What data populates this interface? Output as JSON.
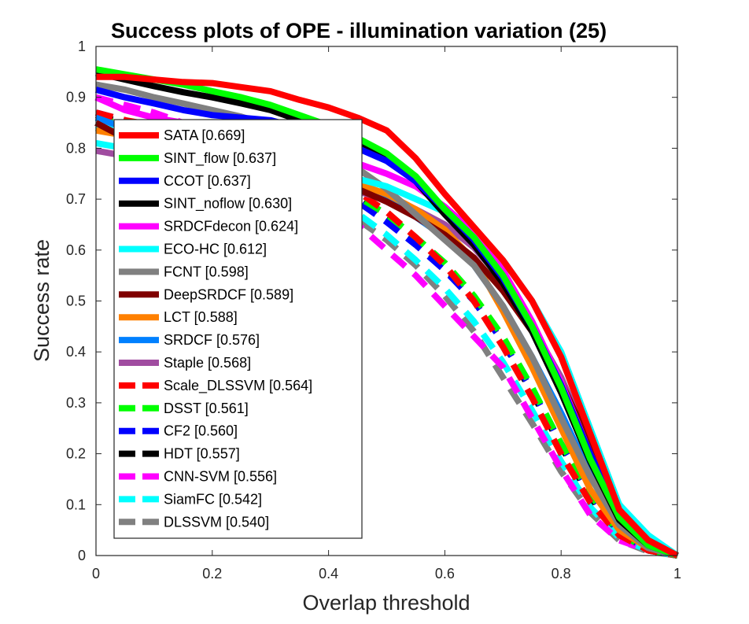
{
  "chart_data": {
    "type": "line",
    "title": "Success plots of OPE - illumination variation (25)",
    "xlabel": "Overlap threshold",
    "ylabel": "Success rate",
    "xlim": [
      0,
      1
    ],
    "ylim": [
      0,
      1
    ],
    "x_ticks": [
      "0",
      "0.2",
      "0.4",
      "0.6",
      "0.8",
      "1"
    ],
    "y_ticks": [
      "0",
      "0.1",
      "0.2",
      "0.3",
      "0.4",
      "0.5",
      "0.6",
      "0.7",
      "0.8",
      "0.9",
      "1"
    ],
    "grid": false,
    "legend_position": "top-left",
    "x": [
      0,
      0.05,
      0.1,
      0.15,
      0.2,
      0.25,
      0.3,
      0.35,
      0.4,
      0.45,
      0.5,
      0.55,
      0.6,
      0.65,
      0.7,
      0.75,
      0.8,
      0.85,
      0.9,
      0.95,
      1.0
    ],
    "series": [
      {
        "name": "SATA [0.669]",
        "color": "#ff0000",
        "dashed": false,
        "values": [
          0.94,
          0.94,
          0.935,
          0.93,
          0.928,
          0.92,
          0.912,
          0.895,
          0.88,
          0.86,
          0.835,
          0.78,
          0.71,
          0.645,
          0.58,
          0.5,
          0.39,
          0.24,
          0.09,
          0.03,
          0.0
        ]
      },
      {
        "name": "SINT_flow [0.637]",
        "color": "#00ff00",
        "dashed": false,
        "values": [
          0.955,
          0.945,
          0.935,
          0.925,
          0.912,
          0.9,
          0.885,
          0.865,
          0.845,
          0.82,
          0.79,
          0.745,
          0.68,
          0.625,
          0.55,
          0.45,
          0.33,
          0.19,
          0.075,
          0.02,
          0.0
        ]
      },
      {
        "name": "CCOT [0.637]",
        "color": "#0000ff",
        "dashed": false,
        "values": [
          0.915,
          0.9,
          0.888,
          0.875,
          0.865,
          0.86,
          0.855,
          0.84,
          0.82,
          0.8,
          0.775,
          0.735,
          0.68,
          0.62,
          0.545,
          0.45,
          0.335,
          0.2,
          0.08,
          0.02,
          0.0
        ]
      },
      {
        "name": "SINT_noflow [0.630]",
        "color": "#000000",
        "dashed": false,
        "values": [
          0.948,
          0.935,
          0.922,
          0.91,
          0.9,
          0.888,
          0.875,
          0.855,
          0.835,
          0.81,
          0.78,
          0.735,
          0.67,
          0.61,
          0.535,
          0.44,
          0.32,
          0.185,
          0.07,
          0.02,
          0.0
        ]
      },
      {
        "name": "SRDCFdecon [0.624]",
        "color": "#ff00ff",
        "dashed": false,
        "values": [
          0.9,
          0.875,
          0.86,
          0.85,
          0.84,
          0.83,
          0.815,
          0.8,
          0.785,
          0.77,
          0.75,
          0.725,
          0.685,
          0.635,
          0.56,
          0.46,
          0.34,
          0.2,
          0.08,
          0.02,
          0.0
        ]
      },
      {
        "name": "ECO-HC [0.612]",
        "color": "#00ffff",
        "dashed": false,
        "values": [
          0.81,
          0.8,
          0.79,
          0.785,
          0.78,
          0.775,
          0.77,
          0.76,
          0.75,
          0.74,
          0.725,
          0.7,
          0.675,
          0.64,
          0.58,
          0.5,
          0.4,
          0.25,
          0.1,
          0.04,
          0.0
        ]
      },
      {
        "name": "FCNT [0.598]",
        "color": "#808080",
        "dashed": false,
        "values": [
          0.925,
          0.915,
          0.9,
          0.888,
          0.875,
          0.862,
          0.845,
          0.82,
          0.79,
          0.76,
          0.72,
          0.67,
          0.62,
          0.57,
          0.49,
          0.39,
          0.27,
          0.155,
          0.06,
          0.015,
          0.0
        ]
      },
      {
        "name": "DeepSRDCF [0.589]",
        "color": "#800000",
        "dashed": false,
        "values": [
          0.85,
          0.82,
          0.81,
          0.8,
          0.79,
          0.78,
          0.77,
          0.755,
          0.74,
          0.72,
          0.695,
          0.665,
          0.63,
          0.585,
          0.52,
          0.44,
          0.34,
          0.22,
          0.1,
          0.035,
          0.0
        ]
      },
      {
        "name": "LCT [0.588]",
        "color": "#ff8000",
        "dashed": false,
        "values": [
          0.835,
          0.825,
          0.815,
          0.805,
          0.795,
          0.785,
          0.775,
          0.76,
          0.745,
          0.73,
          0.71,
          0.68,
          0.64,
          0.58,
          0.48,
          0.37,
          0.25,
          0.13,
          0.05,
          0.015,
          0.0
        ]
      },
      {
        "name": "SRDCF [0.576]",
        "color": "#0080ff",
        "dashed": false,
        "values": [
          0.86,
          0.84,
          0.83,
          0.82,
          0.81,
          0.8,
          0.785,
          0.77,
          0.75,
          0.725,
          0.7,
          0.665,
          0.625,
          0.57,
          0.49,
          0.39,
          0.28,
          0.16,
          0.06,
          0.015,
          0.0
        ]
      },
      {
        "name": "Staple [0.568]",
        "color": "#a04ca0",
        "dashed": false,
        "values": [
          0.795,
          0.785,
          0.775,
          0.765,
          0.758,
          0.75,
          0.745,
          0.737,
          0.727,
          0.715,
          0.7,
          0.68,
          0.65,
          0.605,
          0.54,
          0.45,
          0.35,
          0.22,
          0.09,
          0.025,
          0.0
        ]
      },
      {
        "name": "Scale_DLSSVM [0.564]",
        "color": "#ff0000",
        "dashed": true,
        "values": [
          0.87,
          0.855,
          0.845,
          0.832,
          0.82,
          0.805,
          0.79,
          0.77,
          0.745,
          0.715,
          0.675,
          0.625,
          0.57,
          0.5,
          0.41,
          0.31,
          0.2,
          0.105,
          0.04,
          0.01,
          0.0
        ]
      },
      {
        "name": "DSST [0.561]",
        "color": "#00ff00",
        "dashed": true,
        "values": [
          0.86,
          0.845,
          0.835,
          0.822,
          0.81,
          0.795,
          0.78,
          0.76,
          0.735,
          0.705,
          0.67,
          0.625,
          0.575,
          0.51,
          0.43,
          0.33,
          0.22,
          0.12,
          0.045,
          0.01,
          0.0
        ]
      },
      {
        "name": "CF2 [0.560]",
        "color": "#0000ff",
        "dashed": true,
        "values": [
          0.87,
          0.855,
          0.84,
          0.828,
          0.815,
          0.8,
          0.785,
          0.76,
          0.73,
          0.695,
          0.655,
          0.61,
          0.56,
          0.5,
          0.42,
          0.325,
          0.22,
          0.12,
          0.045,
          0.01,
          0.0
        ]
      },
      {
        "name": "HDT [0.557]",
        "color": "#000000",
        "dashed": true,
        "values": [
          0.865,
          0.85,
          0.838,
          0.825,
          0.812,
          0.797,
          0.782,
          0.762,
          0.735,
          0.705,
          0.665,
          0.62,
          0.565,
          0.5,
          0.42,
          0.32,
          0.215,
          0.115,
          0.045,
          0.01,
          0.0
        ]
      },
      {
        "name": "CNN-SVM [0.556]",
        "color": "#ff00ff",
        "dashed": true,
        "values": [
          0.9,
          0.885,
          0.87,
          0.85,
          0.83,
          0.8,
          0.77,
          0.73,
          0.69,
          0.65,
          0.6,
          0.55,
          0.49,
          0.43,
          0.37,
          0.27,
          0.17,
          0.08,
          0.03,
          0.01,
          0.0
        ]
      },
      {
        "name": "SiamFC [0.542]",
        "color": "#00ffff",
        "dashed": true,
        "values": [
          0.845,
          0.83,
          0.818,
          0.806,
          0.793,
          0.779,
          0.762,
          0.738,
          0.708,
          0.672,
          0.63,
          0.58,
          0.525,
          0.46,
          0.38,
          0.285,
          0.185,
          0.095,
          0.035,
          0.01,
          0.0
        ]
      },
      {
        "name": "DLSSVM [0.540]",
        "color": "#808080",
        "dashed": true,
        "values": [
          0.84,
          0.825,
          0.812,
          0.8,
          0.787,
          0.772,
          0.755,
          0.73,
          0.7,
          0.66,
          0.62,
          0.57,
          0.51,
          0.44,
          0.35,
          0.26,
          0.165,
          0.085,
          0.03,
          0.008,
          0.0
        ]
      }
    ]
  }
}
